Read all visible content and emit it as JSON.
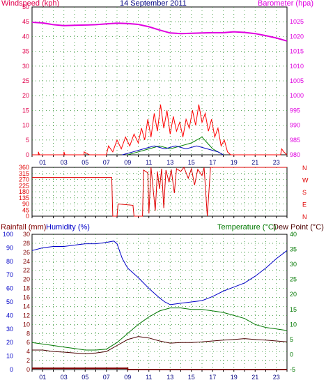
{
  "header": {
    "windspeed_label": "Windspeed (kph)",
    "date": "14 September 2011",
    "barometer_label": "Barometer (hpa)",
    "rainfall_label": "Rainfall (mm)",
    "humidity_label": "Humidity (%)",
    "temperature_label": "Temperature (°C)",
    "dewpoint_label": "Dew Point (°C)"
  },
  "colors": {
    "wind_axis": "#e0004c",
    "baro": "#e000e0",
    "wind": "#ff0000",
    "gust_green": "#008000",
    "gust_blue": "#0000c0",
    "direction": "#e00000",
    "rain_axis": "#800000",
    "humidity": "#0000c8",
    "temperature": "#007800",
    "dewpoint": "#4a0000",
    "grid": "#228b22",
    "time_axis": "#000080"
  },
  "chart_data": [
    {
      "type": "line",
      "panel": "wind-barometer",
      "title": "14 September 2011",
      "x_ticks": [
        "01",
        "03",
        "05",
        "07",
        "09",
        "11",
        "13",
        "15",
        "17",
        "19",
        "21",
        "23"
      ],
      "x_range_hours": [
        0,
        24
      ],
      "left_axis": {
        "label": "Windspeed (kph)",
        "ticks": [
          0,
          5,
          10,
          15,
          20,
          25,
          30,
          35,
          40,
          45,
          50
        ],
        "range": [
          0,
          50
        ]
      },
      "right_axis": {
        "label": "Barometer (hpa)",
        "ticks": [
          980,
          985,
          990,
          995,
          1000,
          1005,
          1010,
          1015,
          1020,
          1025
        ],
        "range": [
          980,
          1030
        ]
      },
      "grid": true,
      "series": [
        {
          "name": "Barometer (hpa)",
          "axis": "right",
          "color": "#e000e0",
          "points": [
            [
              0,
              1024.8
            ],
            [
              1,
              1024.6
            ],
            [
              2,
              1024
            ],
            [
              3,
              1023.7
            ],
            [
              4,
              1023.8
            ],
            [
              5,
              1023.9
            ],
            [
              6,
              1024
            ],
            [
              7,
              1024.3
            ],
            [
              8,
              1024.5
            ],
            [
              9,
              1024.4
            ],
            [
              10,
              1024.1
            ],
            [
              11,
              1023.3
            ],
            [
              12,
              1022.2
            ],
            [
              13,
              1021.2
            ],
            [
              14,
              1021
            ],
            [
              15,
              1021.1
            ],
            [
              16,
              1021.2
            ],
            [
              17,
              1021.3
            ],
            [
              18,
              1021.3
            ],
            [
              19,
              1021.6
            ],
            [
              20,
              1021.4
            ],
            [
              21,
              1021
            ],
            [
              22,
              1020.3
            ],
            [
              23,
              1019.5
            ],
            [
              24,
              1018.5
            ]
          ]
        },
        {
          "name": "Windspeed (kph)",
          "axis": "left",
          "color": "#ff0000",
          "points": [
            [
              0,
              0
            ],
            [
              0.6,
              0
            ],
            [
              0.6,
              1
            ],
            [
              0.7,
              0
            ],
            [
              3,
              0
            ],
            [
              3,
              1
            ],
            [
              3.1,
              0
            ],
            [
              4.9,
              0
            ],
            [
              4.9,
              1
            ],
            [
              5.4,
              0
            ],
            [
              7,
              0
            ],
            [
              7.2,
              3
            ],
            [
              7.6,
              1
            ],
            [
              8,
              5
            ],
            [
              8.4,
              2
            ],
            [
              8.8,
              6
            ],
            [
              9.2,
              3
            ],
            [
              9.6,
              7
            ],
            [
              10,
              4
            ],
            [
              10.3,
              9
            ],
            [
              10.6,
              5
            ],
            [
              10.9,
              12
            ],
            [
              11.2,
              6
            ],
            [
              11.5,
              14
            ],
            [
              11.8,
              8
            ],
            [
              12.1,
              17
            ],
            [
              12.4,
              9
            ],
            [
              12.7,
              15
            ],
            [
              13,
              7
            ],
            [
              13.3,
              13
            ],
            [
              13.6,
              8
            ],
            [
              13.9,
              11
            ],
            [
              14.2,
              6
            ],
            [
              14.5,
              12
            ],
            [
              14.8,
              9
            ],
            [
              15.1,
              15
            ],
            [
              15.4,
              10
            ],
            [
              15.7,
              17
            ],
            [
              16,
              11
            ],
            [
              16.3,
              14
            ],
            [
              16.6,
              8
            ],
            [
              16.9,
              12
            ],
            [
              17.2,
              6
            ],
            [
              17.5,
              9
            ],
            [
              17.8,
              3
            ],
            [
              18.1,
              5
            ],
            [
              18.4,
              1
            ],
            [
              18.7,
              0
            ],
            [
              23.4,
              0
            ],
            [
              23.5,
              2
            ],
            [
              23.7,
              1
            ],
            [
              24,
              0
            ]
          ]
        },
        {
          "name": "",
          "axis": "left",
          "color": "#008000",
          "points": [
            [
              9,
              0
            ],
            [
              10,
              1
            ],
            [
              11,
              2
            ],
            [
              12,
              3
            ],
            [
              13,
              2
            ],
            [
              14,
              3
            ],
            [
              15,
              4
            ],
            [
              16,
              6
            ],
            [
              16.5,
              4
            ],
            [
              17,
              2
            ],
            [
              18,
              0
            ]
          ]
        },
        {
          "name": "",
          "axis": "left",
          "color": "#0000c0",
          "points": [
            [
              8.5,
              0
            ],
            [
              9.5,
              1
            ],
            [
              10.5,
              2
            ],
            [
              11.5,
              3
            ],
            [
              12.5,
              2
            ],
            [
              13.5,
              3
            ],
            [
              14.5,
              2
            ],
            [
              15.5,
              3
            ],
            [
              16.5,
              2
            ],
            [
              17.5,
              1
            ],
            [
              18,
              0
            ]
          ]
        }
      ]
    },
    {
      "type": "line",
      "panel": "wind-direction",
      "x_range_hours": [
        0,
        24
      ],
      "left_axis": {
        "ticks": [
          0,
          45,
          90,
          135,
          180,
          225,
          270,
          315,
          360
        ],
        "range": [
          0,
          360
        ]
      },
      "right_axis": {
        "ticks": [
          "N",
          "W",
          "S",
          "E",
          "N"
        ]
      },
      "grid": true,
      "series": [
        {
          "name": "",
          "color": "#e00000",
          "points": [
            [
              0,
              285
            ],
            [
              7.5,
              285
            ],
            [
              7.6,
              0
            ],
            [
              8,
              0
            ],
            [
              8.1,
              90
            ],
            [
              9.5,
              80
            ],
            [
              9.6,
              0
            ],
            [
              10.4,
              0
            ],
            [
              10.5,
              340
            ],
            [
              10.9,
              320
            ],
            [
              11,
              20
            ],
            [
              11.2,
              360
            ],
            [
              11.6,
              40
            ],
            [
              11.8,
              330
            ],
            [
              12,
              200
            ],
            [
              12.2,
              350
            ],
            [
              12.4,
              60
            ],
            [
              12.6,
              340
            ],
            [
              12.9,
              250
            ],
            [
              13.1,
              345
            ],
            [
              13.4,
              170
            ],
            [
              13.6,
              350
            ],
            [
              14,
              330
            ],
            [
              14.3,
              360
            ],
            [
              14.7,
              280
            ],
            [
              15,
              350
            ],
            [
              15.3,
              230
            ],
            [
              15.6,
              345
            ],
            [
              16,
              300
            ],
            [
              16.2,
              360
            ],
            [
              16.5,
              0
            ],
            [
              16.8,
              360
            ],
            [
              24,
              360
            ]
          ]
        }
      ]
    },
    {
      "type": "line",
      "panel": "humidity-temperature",
      "x_range_hours": [
        0,
        24
      ],
      "left_axes": [
        {
          "label": "Rainfall (mm)",
          "ticks": [
            0,
            2,
            4,
            6,
            8,
            10,
            12,
            14,
            16,
            18,
            20,
            22,
            24,
            26,
            28,
            30
          ],
          "range": [
            0,
            30
          ]
        },
        {
          "label": "Humidity (%)",
          "ticks": [
            0,
            10,
            20,
            30,
            40,
            50,
            60,
            70,
            80,
            90,
            100
          ],
          "range": [
            0,
            100
          ]
        }
      ],
      "right_axis": {
        "label": "Temperature (°C) / Dew Point (°C)",
        "ticks": [
          -5,
          0,
          5,
          10,
          15,
          20,
          25,
          30,
          35,
          40
        ],
        "range": [
          -5,
          40
        ]
      },
      "grid": true,
      "series": [
        {
          "name": "Humidity (%)",
          "axis": "humidity",
          "color": "#0000c8",
          "points": [
            [
              0,
              88
            ],
            [
              1,
              90
            ],
            [
              2,
              91
            ],
            [
              3,
              91
            ],
            [
              4,
              92
            ],
            [
              5,
              93
            ],
            [
              6,
              93
            ],
            [
              7,
              94
            ],
            [
              7.7,
              95
            ],
            [
              8,
              93
            ],
            [
              8.5,
              82
            ],
            [
              9,
              75
            ],
            [
              10,
              68
            ],
            [
              11,
              60
            ],
            [
              12,
              53
            ],
            [
              12.5,
              50
            ],
            [
              13,
              48
            ],
            [
              14,
              49
            ],
            [
              15,
              50
            ],
            [
              16,
              51
            ],
            [
              17,
              54
            ],
            [
              18,
              58
            ],
            [
              19,
              61
            ],
            [
              20,
              64
            ],
            [
              21,
              69
            ],
            [
              22,
              75
            ],
            [
              23,
              82
            ],
            [
              24,
              88
            ]
          ]
        },
        {
          "name": "Temperature (°C)",
          "axis": "temperature",
          "color": "#007800",
          "points": [
            [
              0,
              4
            ],
            [
              1,
              3.5
            ],
            [
              2,
              3
            ],
            [
              3,
              2.5
            ],
            [
              4,
              2
            ],
            [
              5,
              1.5
            ],
            [
              6,
              1.5
            ],
            [
              7,
              1.8
            ],
            [
              8,
              4
            ],
            [
              9,
              7
            ],
            [
              10,
              10
            ],
            [
              11,
              12.5
            ],
            [
              12,
              14.5
            ],
            [
              13,
              15.5
            ],
            [
              14,
              15.5
            ],
            [
              15,
              15
            ],
            [
              16,
              15
            ],
            [
              17,
              14.5
            ],
            [
              18,
              14
            ],
            [
              19,
              13
            ],
            [
              20,
              12
            ],
            [
              21,
              10
            ],
            [
              22,
              9
            ],
            [
              23,
              8.5
            ],
            [
              24,
              8
            ]
          ]
        },
        {
          "name": "Dew Point (°C)",
          "axis": "temperature",
          "color": "#4a0000",
          "points": [
            [
              0,
              1.5
            ],
            [
              1,
              1.5
            ],
            [
              2,
              1
            ],
            [
              3,
              0.8
            ],
            [
              4,
              0.5
            ],
            [
              5,
              0.3
            ],
            [
              6,
              0.5
            ],
            [
              7,
              1
            ],
            [
              8,
              3
            ],
            [
              9,
              5
            ],
            [
              10,
              6
            ],
            [
              11,
              5.5
            ],
            [
              12,
              4.5
            ],
            [
              13,
              3.8
            ],
            [
              14,
              4
            ],
            [
              15,
              4
            ],
            [
              16,
              4.2
            ],
            [
              17,
              4.5
            ],
            [
              18,
              4.8
            ],
            [
              19,
              5
            ],
            [
              20,
              5.3
            ],
            [
              21,
              5
            ],
            [
              22,
              4.8
            ],
            [
              23,
              4.5
            ],
            [
              24,
              4.2
            ]
          ]
        },
        {
          "name": "Rainfall (mm)",
          "axis": "rainfall",
          "color": "#800000",
          "points": [
            [
              0,
              0.3
            ],
            [
              9,
              0.3
            ],
            [
              9,
              0
            ],
            [
              24,
              0
            ]
          ]
        }
      ]
    }
  ]
}
